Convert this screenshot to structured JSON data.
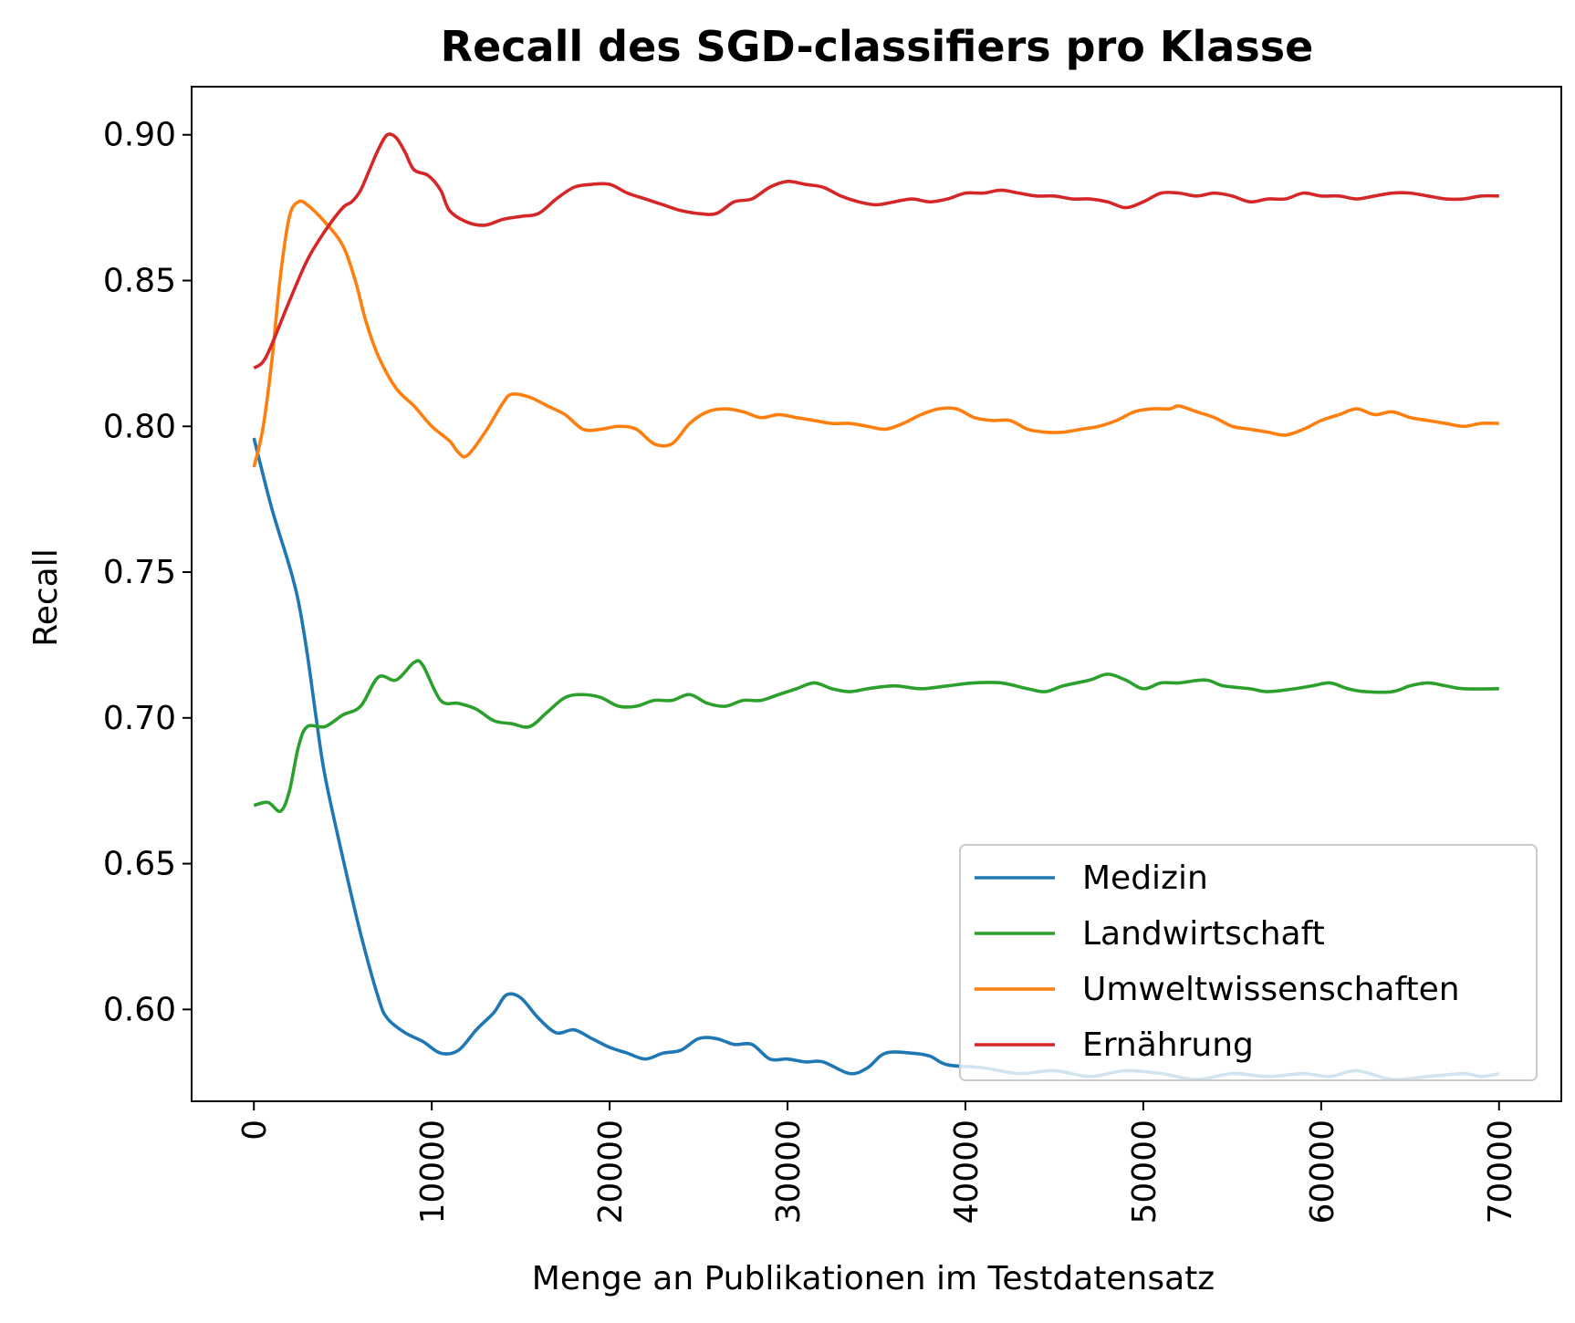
{
  "chart_data": {
    "type": "line",
    "title": "Recall des SGD-classifiers pro Klasse",
    "xlabel": "Menge an Publikationen im Testdatensatz",
    "ylabel": "Recall",
    "xlim": [
      -3500,
      73500
    ],
    "ylim": [
      0.5685,
      0.9165
    ],
    "xticks": [
      0,
      10000,
      20000,
      30000,
      40000,
      50000,
      60000,
      70000
    ],
    "xtick_labels": [
      "0",
      "10000",
      "20000",
      "30000",
      "40000",
      "50000",
      "60000",
      "70000"
    ],
    "yticks": [
      0.6,
      0.65,
      0.7,
      0.75,
      0.8,
      0.85,
      0.9
    ],
    "ytick_labels": [
      "0.60",
      "0.65",
      "0.70",
      "0.75",
      "0.80",
      "0.85",
      "0.90"
    ],
    "grid": false,
    "legend_position": "lower right",
    "series": [
      {
        "name": "Medizin",
        "color": "#1f77b4",
        "points": [
          [
            0,
            0.796
          ],
          [
            1000,
            0.772
          ],
          [
            2000,
            0.752
          ],
          [
            2500,
            0.74
          ],
          [
            3000,
            0.722
          ],
          [
            3500,
            0.7
          ],
          [
            4000,
            0.68
          ],
          [
            5000,
            0.652
          ],
          [
            6000,
            0.626
          ],
          [
            7000,
            0.604
          ],
          [
            7500,
            0.597
          ],
          [
            8500,
            0.592
          ],
          [
            9500,
            0.589
          ],
          [
            10500,
            0.585
          ],
          [
            11500,
            0.586
          ],
          [
            12500,
            0.593
          ],
          [
            13500,
            0.599
          ],
          [
            14200,
            0.605
          ],
          [
            15000,
            0.604
          ],
          [
            16000,
            0.597
          ],
          [
            17000,
            0.592
          ],
          [
            18000,
            0.593
          ],
          [
            19000,
            0.59
          ],
          [
            20000,
            0.587
          ],
          [
            21000,
            0.585
          ],
          [
            22000,
            0.583
          ],
          [
            23000,
            0.585
          ],
          [
            24000,
            0.586
          ],
          [
            25000,
            0.59
          ],
          [
            26000,
            0.59
          ],
          [
            27000,
            0.588
          ],
          [
            28000,
            0.588
          ],
          [
            29000,
            0.583
          ],
          [
            30000,
            0.583
          ],
          [
            31000,
            0.582
          ],
          [
            32000,
            0.582
          ],
          [
            33500,
            0.578
          ],
          [
            34500,
            0.58
          ],
          [
            35500,
            0.585
          ],
          [
            37000,
            0.585
          ],
          [
            38000,
            0.584
          ],
          [
            39000,
            0.581
          ],
          [
            41000,
            0.58
          ],
          [
            43000,
            0.578
          ],
          [
            45000,
            0.579
          ],
          [
            47000,
            0.577
          ],
          [
            49000,
            0.579
          ],
          [
            51000,
            0.578
          ],
          [
            53000,
            0.576
          ],
          [
            55000,
            0.578
          ],
          [
            57000,
            0.577
          ],
          [
            59000,
            0.578
          ],
          [
            60500,
            0.577
          ],
          [
            62000,
            0.579
          ],
          [
            64000,
            0.576
          ],
          [
            66000,
            0.577
          ],
          [
            68000,
            0.578
          ],
          [
            69000,
            0.577
          ],
          [
            70000,
            0.578
          ]
        ]
      },
      {
        "name": "Landwirtschaft",
        "color": "#2ca02c",
        "points": [
          [
            0,
            0.67
          ],
          [
            800,
            0.671
          ],
          [
            1500,
            0.668
          ],
          [
            2000,
            0.675
          ],
          [
            2500,
            0.69
          ],
          [
            3000,
            0.697
          ],
          [
            4000,
            0.697
          ],
          [
            5000,
            0.701
          ],
          [
            6000,
            0.704
          ],
          [
            7000,
            0.714
          ],
          [
            8000,
            0.713
          ],
          [
            9000,
            0.719
          ],
          [
            9500,
            0.718
          ],
          [
            10500,
            0.706
          ],
          [
            11500,
            0.705
          ],
          [
            12500,
            0.703
          ],
          [
            13500,
            0.699
          ],
          [
            14500,
            0.698
          ],
          [
            15500,
            0.697
          ],
          [
            16500,
            0.702
          ],
          [
            17500,
            0.707
          ],
          [
            18500,
            0.708
          ],
          [
            19500,
            0.707
          ],
          [
            20500,
            0.704
          ],
          [
            21500,
            0.704
          ],
          [
            22500,
            0.706
          ],
          [
            23500,
            0.706
          ],
          [
            24500,
            0.708
          ],
          [
            25500,
            0.705
          ],
          [
            26500,
            0.704
          ],
          [
            27500,
            0.706
          ],
          [
            28500,
            0.706
          ],
          [
            29500,
            0.708
          ],
          [
            30500,
            0.71
          ],
          [
            31500,
            0.712
          ],
          [
            32500,
            0.71
          ],
          [
            33500,
            0.709
          ],
          [
            34500,
            0.71
          ],
          [
            36000,
            0.711
          ],
          [
            37500,
            0.71
          ],
          [
            39000,
            0.711
          ],
          [
            40500,
            0.712
          ],
          [
            42000,
            0.712
          ],
          [
            43500,
            0.71
          ],
          [
            44500,
            0.709
          ],
          [
            45500,
            0.711
          ],
          [
            47000,
            0.713
          ],
          [
            48000,
            0.715
          ],
          [
            49000,
            0.713
          ],
          [
            50000,
            0.71
          ],
          [
            51000,
            0.712
          ],
          [
            52000,
            0.712
          ],
          [
            53500,
            0.713
          ],
          [
            54500,
            0.711
          ],
          [
            56000,
            0.71
          ],
          [
            57000,
            0.709
          ],
          [
            58500,
            0.71
          ],
          [
            59500,
            0.711
          ],
          [
            60500,
            0.712
          ],
          [
            61500,
            0.71
          ],
          [
            62500,
            0.709
          ],
          [
            64000,
            0.709
          ],
          [
            65000,
            0.711
          ],
          [
            66000,
            0.712
          ],
          [
            67000,
            0.711
          ],
          [
            68000,
            0.71
          ],
          [
            70000,
            0.71
          ]
        ]
      },
      {
        "name": "Umweltwissenschaften",
        "color": "#ff7f0e",
        "points": [
          [
            0,
            0.786
          ],
          [
            500,
            0.799
          ],
          [
            1000,
            0.822
          ],
          [
            1500,
            0.852
          ],
          [
            2000,
            0.872
          ],
          [
            2500,
            0.877
          ],
          [
            3000,
            0.876
          ],
          [
            4000,
            0.87
          ],
          [
            5000,
            0.862
          ],
          [
            5700,
            0.85
          ],
          [
            6300,
            0.836
          ],
          [
            7000,
            0.824
          ],
          [
            8000,
            0.813
          ],
          [
            9000,
            0.807
          ],
          [
            10000,
            0.8
          ],
          [
            11000,
            0.795
          ],
          [
            11500,
            0.791
          ],
          [
            12000,
            0.79
          ],
          [
            13000,
            0.798
          ],
          [
            14000,
            0.808
          ],
          [
            14500,
            0.811
          ],
          [
            15500,
            0.81
          ],
          [
            16500,
            0.807
          ],
          [
            17500,
            0.804
          ],
          [
            18500,
            0.799
          ],
          [
            19500,
            0.799
          ],
          [
            20500,
            0.8
          ],
          [
            21500,
            0.799
          ],
          [
            22500,
            0.794
          ],
          [
            23500,
            0.794
          ],
          [
            24500,
            0.801
          ],
          [
            25500,
            0.805
          ],
          [
            26500,
            0.806
          ],
          [
            27500,
            0.805
          ],
          [
            28500,
            0.803
          ],
          [
            29500,
            0.804
          ],
          [
            30500,
            0.803
          ],
          [
            31500,
            0.802
          ],
          [
            32500,
            0.801
          ],
          [
            33500,
            0.801
          ],
          [
            34500,
            0.8
          ],
          [
            35500,
            0.799
          ],
          [
            36500,
            0.801
          ],
          [
            37500,
            0.804
          ],
          [
            38500,
            0.806
          ],
          [
            39500,
            0.806
          ],
          [
            40500,
            0.803
          ],
          [
            41500,
            0.802
          ],
          [
            42500,
            0.802
          ],
          [
            43500,
            0.799
          ],
          [
            44500,
            0.798
          ],
          [
            45500,
            0.798
          ],
          [
            46500,
            0.799
          ],
          [
            47500,
            0.8
          ],
          [
            48500,
            0.802
          ],
          [
            49500,
            0.805
          ],
          [
            50500,
            0.806
          ],
          [
            51500,
            0.806
          ],
          [
            52000,
            0.807
          ],
          [
            53000,
            0.805
          ],
          [
            54000,
            0.803
          ],
          [
            55000,
            0.8
          ],
          [
            56000,
            0.799
          ],
          [
            57000,
            0.798
          ],
          [
            58000,
            0.797
          ],
          [
            59000,
            0.799
          ],
          [
            60000,
            0.802
          ],
          [
            61000,
            0.804
          ],
          [
            62000,
            0.806
          ],
          [
            63000,
            0.804
          ],
          [
            64000,
            0.805
          ],
          [
            65000,
            0.803
          ],
          [
            66000,
            0.802
          ],
          [
            67000,
            0.801
          ],
          [
            68000,
            0.8
          ],
          [
            69000,
            0.801
          ],
          [
            70000,
            0.801
          ]
        ]
      },
      {
        "name": "Ernährung",
        "color": "#d62728",
        "points": [
          [
            0,
            0.82
          ],
          [
            500,
            0.822
          ],
          [
            1000,
            0.828
          ],
          [
            2000,
            0.843
          ],
          [
            3000,
            0.857
          ],
          [
            4000,
            0.867
          ],
          [
            5000,
            0.875
          ],
          [
            5500,
            0.877
          ],
          [
            6000,
            0.881
          ],
          [
            6500,
            0.888
          ],
          [
            7000,
            0.895
          ],
          [
            7500,
            0.9
          ],
          [
            8000,
            0.899
          ],
          [
            8500,
            0.894
          ],
          [
            9000,
            0.888
          ],
          [
            9800,
            0.886
          ],
          [
            10500,
            0.881
          ],
          [
            11000,
            0.874
          ],
          [
            12000,
            0.87
          ],
          [
            13000,
            0.869
          ],
          [
            14000,
            0.871
          ],
          [
            15000,
            0.872
          ],
          [
            16000,
            0.873
          ],
          [
            17000,
            0.878
          ],
          [
            18000,
            0.882
          ],
          [
            19000,
            0.883
          ],
          [
            20000,
            0.883
          ],
          [
            21000,
            0.88
          ],
          [
            22000,
            0.878
          ],
          [
            23000,
            0.876
          ],
          [
            24000,
            0.874
          ],
          [
            25000,
            0.873
          ],
          [
            26000,
            0.873
          ],
          [
            27000,
            0.877
          ],
          [
            28000,
            0.878
          ],
          [
            29000,
            0.882
          ],
          [
            30000,
            0.884
          ],
          [
            31000,
            0.883
          ],
          [
            32000,
            0.882
          ],
          [
            33000,
            0.879
          ],
          [
            34000,
            0.877
          ],
          [
            35000,
            0.876
          ],
          [
            36000,
            0.877
          ],
          [
            37000,
            0.878
          ],
          [
            38000,
            0.877
          ],
          [
            39000,
            0.878
          ],
          [
            40000,
            0.88
          ],
          [
            41000,
            0.88
          ],
          [
            42000,
            0.881
          ],
          [
            43000,
            0.88
          ],
          [
            44000,
            0.879
          ],
          [
            45000,
            0.879
          ],
          [
            46000,
            0.878
          ],
          [
            47000,
            0.878
          ],
          [
            48000,
            0.877
          ],
          [
            49000,
            0.875
          ],
          [
            50000,
            0.877
          ],
          [
            51000,
            0.88
          ],
          [
            52000,
            0.88
          ],
          [
            53000,
            0.879
          ],
          [
            54000,
            0.88
          ],
          [
            55000,
            0.879
          ],
          [
            56000,
            0.877
          ],
          [
            57000,
            0.878
          ],
          [
            58000,
            0.878
          ],
          [
            59000,
            0.88
          ],
          [
            60000,
            0.879
          ],
          [
            61000,
            0.879
          ],
          [
            62000,
            0.878
          ],
          [
            63000,
            0.879
          ],
          [
            64000,
            0.88
          ],
          [
            65000,
            0.88
          ],
          [
            66000,
            0.879
          ],
          [
            67000,
            0.878
          ],
          [
            68000,
            0.878
          ],
          [
            69000,
            0.879
          ],
          [
            70000,
            0.879
          ]
        ]
      }
    ]
  }
}
